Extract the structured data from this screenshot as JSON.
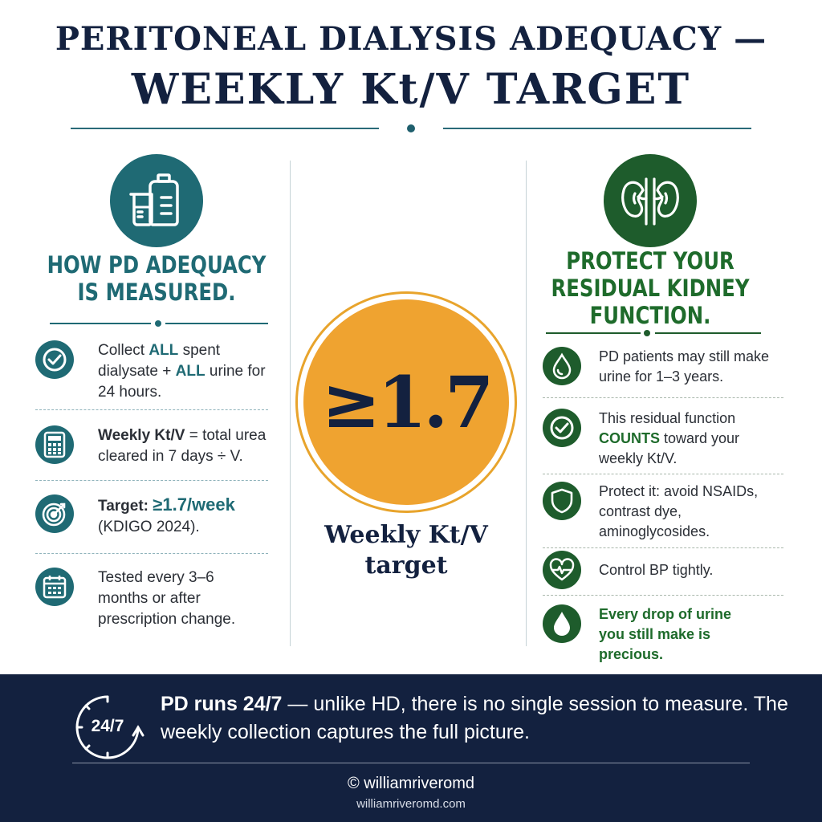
{
  "title": {
    "line1": "PERITONEAL DIALYSIS ADEQUACY —",
    "line2": "WEEKLY Kt/V TARGET"
  },
  "colors": {
    "navy": "#13213f",
    "teal": "#1f6a74",
    "green": "#1e5c2c",
    "orange": "#efa330"
  },
  "left": {
    "icon": "beaker-and-jug-icon",
    "heading_line1": "HOW PD ADEQUACY",
    "heading_line2": "IS MEASURED.",
    "items": [
      {
        "icon": "check-circle-icon",
        "t1": "Collect ",
        "h1": "ALL",
        "t2": " spent dialysate + ",
        "h2": "ALL",
        "t3": " urine for 24 hours."
      },
      {
        "icon": "calculator-icon",
        "b1": "Weekly Kt/V",
        "t1": " = total urea cleared in 7 days ÷ V."
      },
      {
        "icon": "target-icon",
        "b1": "Target: ",
        "h1": "≥1.7/week",
        "t1": " (KDIGO 2024)."
      },
      {
        "icon": "calendar-icon",
        "t1": "Tested every 3–6 months or after prescription change."
      }
    ]
  },
  "center": {
    "value": "≥1.7",
    "label_line1": "Weekly Kt/V",
    "label_line2": "target"
  },
  "right": {
    "icon": "kidneys-icon",
    "heading_line1": "PROTECT YOUR",
    "heading_line2": "RESIDUAL KIDNEY",
    "heading_line3": "FUNCTION.",
    "items": [
      {
        "icon": "droplet-icon",
        "t1": "PD patients may still make urine for 1–3 years."
      },
      {
        "icon": "check-circle-icon",
        "t1": "This residual function ",
        "h1": "COUNTS",
        "t2": " toward your weekly Kt/V."
      },
      {
        "icon": "shield-icon",
        "t1": "Protect it: avoid NSAIDs, contrast dye, aminoglycosides."
      },
      {
        "icon": "heart-pulse-icon",
        "t1": "Control BP tightly."
      },
      {
        "icon": "water-drop-icon",
        "h1": "Every drop of urine you still make is precious."
      }
    ]
  },
  "footer": {
    "icon_text": "24/7",
    "bold": "PD runs 24/7",
    "text": " — unlike HD, there is no single session to measure. The weekly collection captures the full picture.",
    "copyright": "© williamriveromd",
    "url": "williamriveromd.com"
  }
}
